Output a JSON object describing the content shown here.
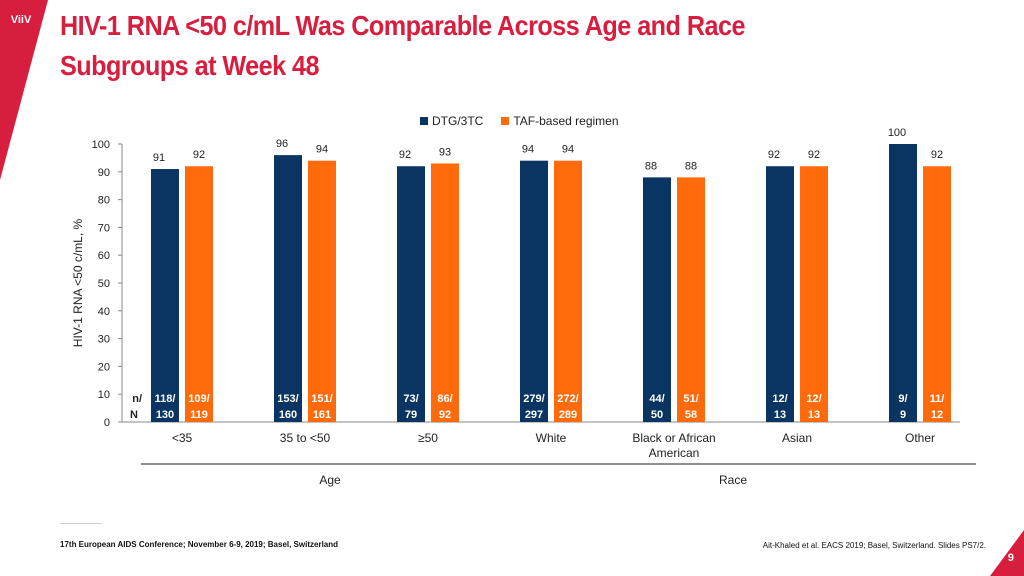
{
  "logo": {
    "text": "ViiV"
  },
  "title": {
    "line1": "HIV-1 RNA <50 c/mL Was Comparable Across Age and Race",
    "line2": "Subgroups at Week 48"
  },
  "colors": {
    "dtg": "#0a3563",
    "taf": "#ff6b0a",
    "brand": "#d81e3f"
  },
  "chart_data": {
    "type": "bar",
    "title": "",
    "ylabel": "HIV-1 RNA <50 c/mL, %",
    "ylim": [
      0,
      100
    ],
    "yticks": [
      "0",
      "10",
      "20",
      "30",
      "40",
      "50",
      "60",
      "70",
      "80",
      "90",
      "100"
    ],
    "categories": [
      "<35",
      "35 to <50",
      "≥50",
      "White",
      "Black or African American",
      "Asian",
      "Other"
    ],
    "category_lines": [
      [
        "<35"
      ],
      [
        "35 to <50"
      ],
      [
        "≥50"
      ],
      [
        "White"
      ],
      [
        "Black or African",
        "American"
      ],
      [
        "Asian"
      ],
      [
        "Other"
      ]
    ],
    "series": [
      {
        "name": "DTG/3TC",
        "values": [
          91,
          96,
          92,
          94,
          88,
          92,
          100
        ],
        "n": [
          "118/",
          "153/",
          "73/",
          "279/",
          "44/",
          "12/",
          "9/"
        ],
        "N": [
          "130",
          "160",
          "79",
          "297",
          "50",
          "13",
          "9"
        ]
      },
      {
        "name": "TAF-based regimen",
        "values": [
          92,
          94,
          93,
          94,
          88,
          92,
          92
        ],
        "n": [
          "109/",
          "151/",
          "86/",
          "272/",
          "51/",
          "12/",
          "11/"
        ],
        "N": [
          "119",
          "161",
          "92",
          "289",
          "58",
          "13",
          "12"
        ]
      }
    ],
    "nN_label": [
      "n/",
      "N"
    ],
    "groups": [
      {
        "label": "Age",
        "categories": [
          0,
          1,
          2
        ]
      },
      {
        "label": "Race",
        "categories": [
          3,
          4,
          5,
          6
        ]
      }
    ],
    "legend": "top"
  },
  "footer": {
    "conference": "17th European AIDS Conference; November 6-9, 2019; Basel, Switzerland",
    "reference": "Ait-Khaled et al. EACS 2019; Basel, Switzerland. Slides PS7/2.",
    "page": "9"
  }
}
